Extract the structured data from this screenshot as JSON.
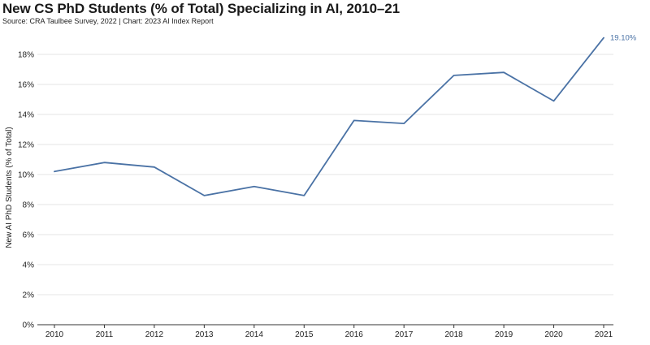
{
  "chart_data": {
    "type": "line",
    "title": "New CS PhD Students (% of Total) Specializing in AI, 2010–21",
    "subtitle": "Source: CRA Taulbee Survey, 2022 | Chart: 2023 AI Index Report",
    "xlabel": "",
    "ylabel": "New AI PhD Students (% of Total)",
    "x": [
      2010,
      2011,
      2012,
      2013,
      2014,
      2015,
      2016,
      2017,
      2018,
      2019,
      2020,
      2021
    ],
    "series": [
      {
        "values": [
          10.2,
          10.8,
          10.5,
          8.6,
          9.2,
          8.6,
          13.6,
          13.4,
          16.6,
          16.8,
          14.9,
          19.1
        ],
        "color": "#4a72a5"
      }
    ],
    "ylim": [
      0,
      20
    ],
    "yticks": [
      0,
      2,
      4,
      6,
      8,
      10,
      12,
      14,
      16,
      18
    ],
    "ytick_labels": [
      "0%",
      "2%",
      "4%",
      "6%",
      "8%",
      "10%",
      "12%",
      "14%",
      "16%",
      "18%"
    ],
    "grid": true,
    "annotations": [
      {
        "x": 2021,
        "y": 19.1,
        "text": "19.10%"
      }
    ],
    "colors": {
      "line": "#4a72a5",
      "grid": "#e6e6e6",
      "axis": "#333333"
    }
  }
}
